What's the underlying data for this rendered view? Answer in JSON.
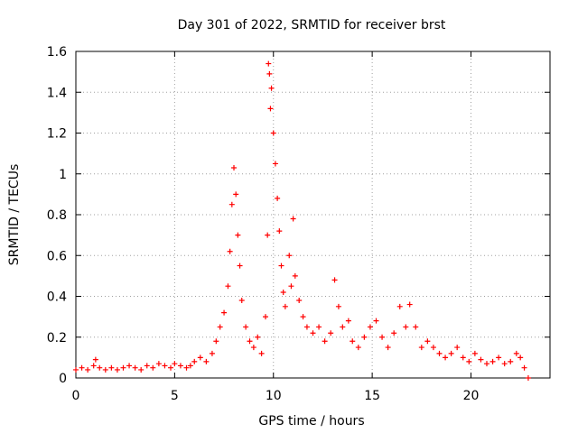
{
  "chart_data": {
    "type": "scatter",
    "title": "Day 301 of 2022, SRMTID for receiver brst",
    "xlabel": "GPS time / hours",
    "ylabel": "SRMTID / TECUs",
    "xlim": [
      0,
      24
    ],
    "ylim": [
      0,
      1.6
    ],
    "xticks": [
      0,
      5,
      10,
      15,
      20
    ],
    "xtick_labels": [
      "0",
      "5",
      "10",
      "15",
      "20"
    ],
    "yticks": [
      0,
      0.2,
      0.4,
      0.6,
      0.8,
      1.0,
      1.2,
      1.4,
      1.6
    ],
    "ytick_labels": [
      "0",
      "0.2",
      "0.4",
      "0.6",
      "0.8",
      "1",
      "1.2",
      "1.4",
      "1.6"
    ],
    "grid": true,
    "marker": "+",
    "series": [
      {
        "name": "SRMTID",
        "color": "#ff0000",
        "points": [
          [
            0.0,
            0.04
          ],
          [
            0.3,
            0.05
          ],
          [
            0.6,
            0.04
          ],
          [
            0.9,
            0.06
          ],
          [
            1.0,
            0.09
          ],
          [
            1.2,
            0.05
          ],
          [
            1.5,
            0.04
          ],
          [
            1.8,
            0.05
          ],
          [
            2.1,
            0.04
          ],
          [
            2.4,
            0.05
          ],
          [
            2.7,
            0.06
          ],
          [
            3.0,
            0.05
          ],
          [
            3.3,
            0.04
          ],
          [
            3.6,
            0.06
          ],
          [
            3.9,
            0.05
          ],
          [
            4.2,
            0.07
          ],
          [
            4.5,
            0.06
          ],
          [
            4.8,
            0.05
          ],
          [
            5.0,
            0.07
          ],
          [
            5.3,
            0.06
          ],
          [
            5.6,
            0.05
          ],
          [
            5.8,
            0.06
          ],
          [
            6.0,
            0.08
          ],
          [
            6.3,
            0.1
          ],
          [
            6.6,
            0.08
          ],
          [
            6.9,
            0.12
          ],
          [
            7.1,
            0.18
          ],
          [
            7.3,
            0.25
          ],
          [
            7.5,
            0.32
          ],
          [
            7.7,
            0.45
          ],
          [
            7.8,
            0.62
          ],
          [
            7.9,
            0.85
          ],
          [
            8.0,
            1.03
          ],
          [
            8.1,
            0.9
          ],
          [
            8.2,
            0.7
          ],
          [
            8.3,
            0.55
          ],
          [
            8.4,
            0.38
          ],
          [
            8.6,
            0.25
          ],
          [
            8.8,
            0.18
          ],
          [
            9.0,
            0.15
          ],
          [
            9.2,
            0.2
          ],
          [
            9.4,
            0.12
          ],
          [
            9.6,
            0.3
          ],
          [
            9.7,
            0.7
          ],
          [
            9.75,
            1.54
          ],
          [
            9.8,
            1.49
          ],
          [
            9.85,
            1.32
          ],
          [
            9.9,
            1.42
          ],
          [
            10.0,
            1.2
          ],
          [
            10.1,
            1.05
          ],
          [
            10.2,
            0.88
          ],
          [
            10.3,
            0.72
          ],
          [
            10.4,
            0.55
          ],
          [
            10.5,
            0.42
          ],
          [
            10.6,
            0.35
          ],
          [
            10.8,
            0.6
          ],
          [
            10.9,
            0.45
          ],
          [
            11.0,
            0.78
          ],
          [
            11.1,
            0.5
          ],
          [
            11.3,
            0.38
          ],
          [
            11.5,
            0.3
          ],
          [
            11.7,
            0.25
          ],
          [
            12.0,
            0.22
          ],
          [
            12.3,
            0.25
          ],
          [
            12.6,
            0.18
          ],
          [
            12.9,
            0.22
          ],
          [
            13.1,
            0.48
          ],
          [
            13.3,
            0.35
          ],
          [
            13.5,
            0.25
          ],
          [
            13.8,
            0.28
          ],
          [
            14.0,
            0.18
          ],
          [
            14.3,
            0.15
          ],
          [
            14.6,
            0.2
          ],
          [
            14.9,
            0.25
          ],
          [
            15.2,
            0.28
          ],
          [
            15.5,
            0.2
          ],
          [
            15.8,
            0.15
          ],
          [
            16.1,
            0.22
          ],
          [
            16.4,
            0.35
          ],
          [
            16.7,
            0.25
          ],
          [
            16.9,
            0.36
          ],
          [
            17.2,
            0.25
          ],
          [
            17.5,
            0.15
          ],
          [
            17.8,
            0.18
          ],
          [
            18.1,
            0.15
          ],
          [
            18.4,
            0.12
          ],
          [
            18.7,
            0.1
          ],
          [
            19.0,
            0.12
          ],
          [
            19.3,
            0.15
          ],
          [
            19.6,
            0.1
          ],
          [
            19.9,
            0.08
          ],
          [
            20.2,
            0.12
          ],
          [
            20.5,
            0.09
          ],
          [
            20.8,
            0.07
          ],
          [
            21.1,
            0.08
          ],
          [
            21.4,
            0.1
          ],
          [
            21.7,
            0.07
          ],
          [
            22.0,
            0.08
          ],
          [
            22.3,
            0.12
          ],
          [
            22.5,
            0.1
          ],
          [
            22.7,
            0.05
          ],
          [
            22.9,
            0.0
          ]
        ]
      }
    ]
  }
}
